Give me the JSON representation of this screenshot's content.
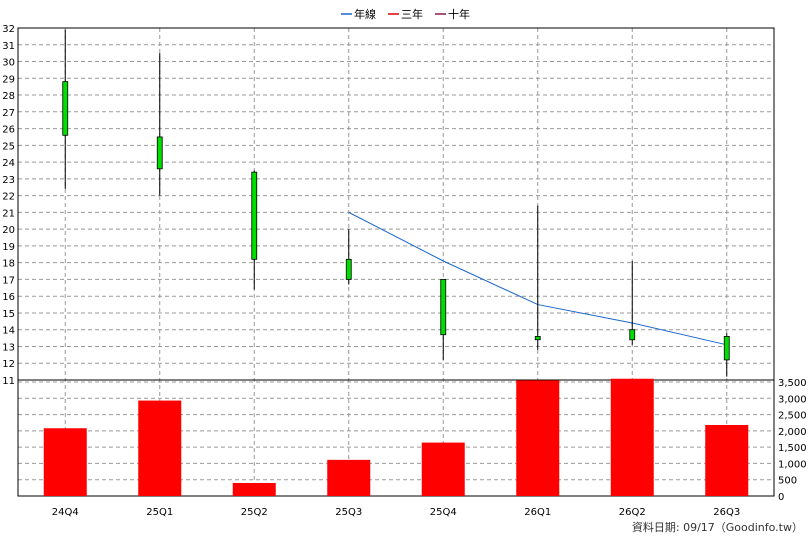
{
  "chart_data": {
    "type": "candlestick",
    "legend": [
      {
        "label": "年線",
        "color": "#1a66cc"
      },
      {
        "label": "三年",
        "color": "#e00000"
      },
      {
        "label": "十年",
        "color": "#8b1a4a"
      }
    ],
    "categories": [
      "24Q4",
      "25Q1",
      "25Q2",
      "25Q3",
      "25Q4",
      "26Q1",
      "26Q2",
      "26Q3"
    ],
    "price_axis": {
      "min": 11,
      "max": 32,
      "ticks": [
        "11",
        "12",
        "13",
        "14",
        "15",
        "16",
        "17",
        "18",
        "19",
        "20",
        "21",
        "22",
        "23",
        "24",
        "25",
        "26",
        "27",
        "28",
        "29",
        "30",
        "31",
        "32"
      ]
    },
    "candles": [
      {
        "open": 25.6,
        "high": 31.9,
        "low": 22.4,
        "close": 28.8
      },
      {
        "open": 23.6,
        "high": 30.5,
        "low": 22.0,
        "close": 25.5
      },
      {
        "open": 18.2,
        "high": 23.5,
        "low": 16.4,
        "close": 23.4
      },
      {
        "open": 17.0,
        "high": 20.0,
        "low": 16.7,
        "close": 18.2
      },
      {
        "open": 13.7,
        "high": 17.0,
        "low": 12.2,
        "close": 17.0
      },
      {
        "open": 13.4,
        "high": 21.4,
        "low": 12.8,
        "close": 13.6
      },
      {
        "open": 13.4,
        "high": 18.1,
        "low": 13.1,
        "close": 14.0
      },
      {
        "open": 12.2,
        "high": 13.8,
        "low": 11.2,
        "close": 13.6
      }
    ],
    "moving_average": {
      "name": "年線",
      "color": "#1a66cc",
      "points": [
        {
          "category": "25Q3",
          "value": 21.0
        },
        {
          "category": "25Q4",
          "value": 18.1
        },
        {
          "category": "26Q1",
          "value": 15.5
        },
        {
          "category": "26Q2",
          "value": 14.4
        },
        {
          "category": "26Q3",
          "value": 13.1
        }
      ]
    },
    "volume_axis": {
      "min": 0,
      "max": 3500,
      "ticks": [
        "0",
        "500",
        "1,000",
        "1,500",
        "2,000",
        "2,500",
        "3,000",
        "3,500"
      ]
    },
    "volumes": [
      2080,
      2930,
      400,
      1110,
      1640,
      3550,
      3600,
      2180
    ],
    "colors": {
      "candle_up": "#00dd00",
      "candle_down": "#ff0000",
      "volume_bar": "#ff0000",
      "grid": "#999999"
    },
    "grid": true,
    "footnote": "資料日期: 09/17（Goodinfo.tw）"
  }
}
